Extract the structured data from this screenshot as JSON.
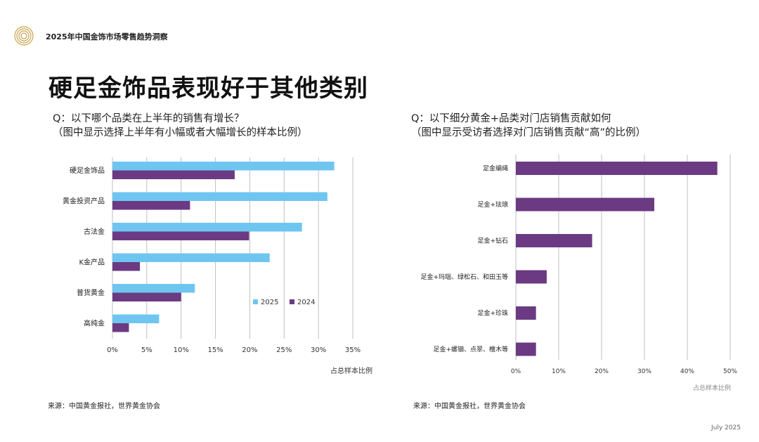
{
  "header": {
    "report_title": "2025年中国金饰市场零售趋势洞察",
    "main_title": "硬足金饰品表现好于其他类别"
  },
  "left": {
    "question_line1": "Q：以下哪个品类在上半年的销售有增长？",
    "question_line2": "（图中显示选择上半年有小幅或者大幅增长的样本比例）",
    "source": "来源：中国黄金报社，世界黄金协会"
  },
  "right": {
    "question_line1": "Q：以下细分黄金+品类对门店销售贡献如何",
    "question_line2": "（图中显示受访者选择对门店销售贡献“高”的比例）",
    "source": "来源：中国黄金报社，世界黄金协会"
  },
  "footer": {
    "date": "July 2025"
  },
  "colors": {
    "s2025": "#6ec6f0",
    "s2024": "#6b3a82",
    "grid": "#bfbfbf"
  },
  "chart_data": [
    {
      "type": "bar",
      "orientation": "horizontal",
      "categories": [
        "硬足金饰品",
        "黄金投资产品",
        "古法金",
        "K金产品",
        "普货黄金",
        "高纯金"
      ],
      "series": [
        {
          "name": "2025",
          "values": [
            32.3,
            31.3,
            27.6,
            22.9,
            12.0,
            6.8
          ]
        },
        {
          "name": "2024",
          "values": [
            17.8,
            11.3,
            19.9,
            4.0,
            10.0,
            2.4
          ]
        }
      ],
      "xlim": [
        0,
        35
      ],
      "xticks": [
        "0%",
        "5%",
        "10%",
        "15%",
        "20%",
        "25%",
        "30%",
        "35%"
      ],
      "xlabel": "占总样本比例",
      "legend_position": "lower-right",
      "grid": true
    },
    {
      "type": "bar",
      "orientation": "horizontal",
      "categories": [
        "足金编绳",
        "足金+珐琅",
        "足金+钻石",
        "足金+玛瑙、绿松石、和田玉等",
        "足金+珍珠",
        "足金+螺钿、点翠、檀木等"
      ],
      "series": [
        {
          "name": "",
          "values": [
            47.0,
            32.3,
            17.8,
            7.2,
            4.7,
            4.7
          ]
        }
      ],
      "xlim": [
        0,
        50
      ],
      "xticks": [
        "0%",
        "10%",
        "20%",
        "30%",
        "40%",
        "50%"
      ],
      "xlabel": "占总样本比例",
      "grid": true
    }
  ]
}
